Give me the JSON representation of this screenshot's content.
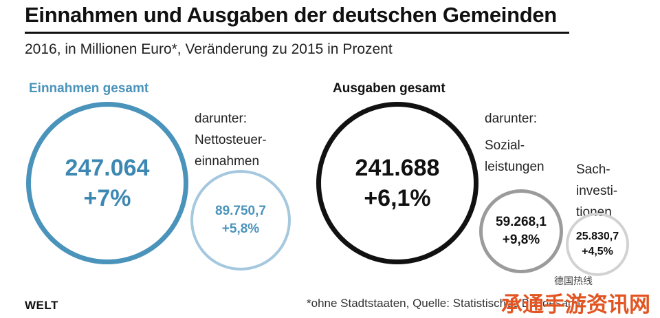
{
  "title": "Einnahmen und Ausgaben der deutschen Gemeinden",
  "subtitle": "2016, in Millionen Euro*, Veränderung zu 2015 in Prozent",
  "income": {
    "label": "Einnahmen gesamt",
    "total_value": "247.064",
    "total_change": "+7%",
    "darunter": "darunter:",
    "sub_label_line1": "Nettosteuer-",
    "sub_label_line2": "einnahmen",
    "sub_value": "89.750,7",
    "sub_change": "+5,8%"
  },
  "expense": {
    "label": "Ausgaben gesamt",
    "total_value": "241.688",
    "total_change": "+6,1%",
    "darunter": "darunter:",
    "sub1_label_line1": "Sozial-",
    "sub1_label_line2": "leistungen",
    "sub1_value": "59.268,1",
    "sub1_change": "+9,8%",
    "sub2_label_line1": "Sach-",
    "sub2_label_line2": "investi-",
    "sub2_label_line3": "tionen",
    "sub2_value": "25.830,7",
    "sub2_change": "+4,5%"
  },
  "footer": {
    "logo": "WELT",
    "footnote": "*ohne Stadtstaaten, Quelle: Statistisches Bundesamt"
  },
  "watermark": {
    "small": "德国热线",
    "large": "承通手游资讯网"
  },
  "colors": {
    "income_blue": "#4a93bb",
    "income_light": "#a5c8df",
    "expense_black": "#111111",
    "expense_grey": "#9b9b9b",
    "expense_light": "#d2d2d2",
    "watermark": "#e25522"
  },
  "chart_data": {
    "type": "bubble",
    "title": "Einnahmen und Ausgaben der deutschen Gemeinden",
    "subtitle": "2016, in Millionen Euro*, Veränderung zu 2015 in Prozent",
    "groups": [
      {
        "name": "Einnahmen gesamt",
        "total": 247064,
        "change_pct": 7.0,
        "components": [
          {
            "name": "Nettosteuereinnahmen",
            "value": 89750.7,
            "change_pct": 5.8
          }
        ]
      },
      {
        "name": "Ausgaben gesamt",
        "total": 241688,
        "change_pct": 6.1,
        "components": [
          {
            "name": "Sozialleistungen",
            "value": 59268.1,
            "change_pct": 9.8
          },
          {
            "name": "Sachinvestitionen",
            "value": 25830.7,
            "change_pct": 4.5
          }
        ]
      }
    ]
  }
}
